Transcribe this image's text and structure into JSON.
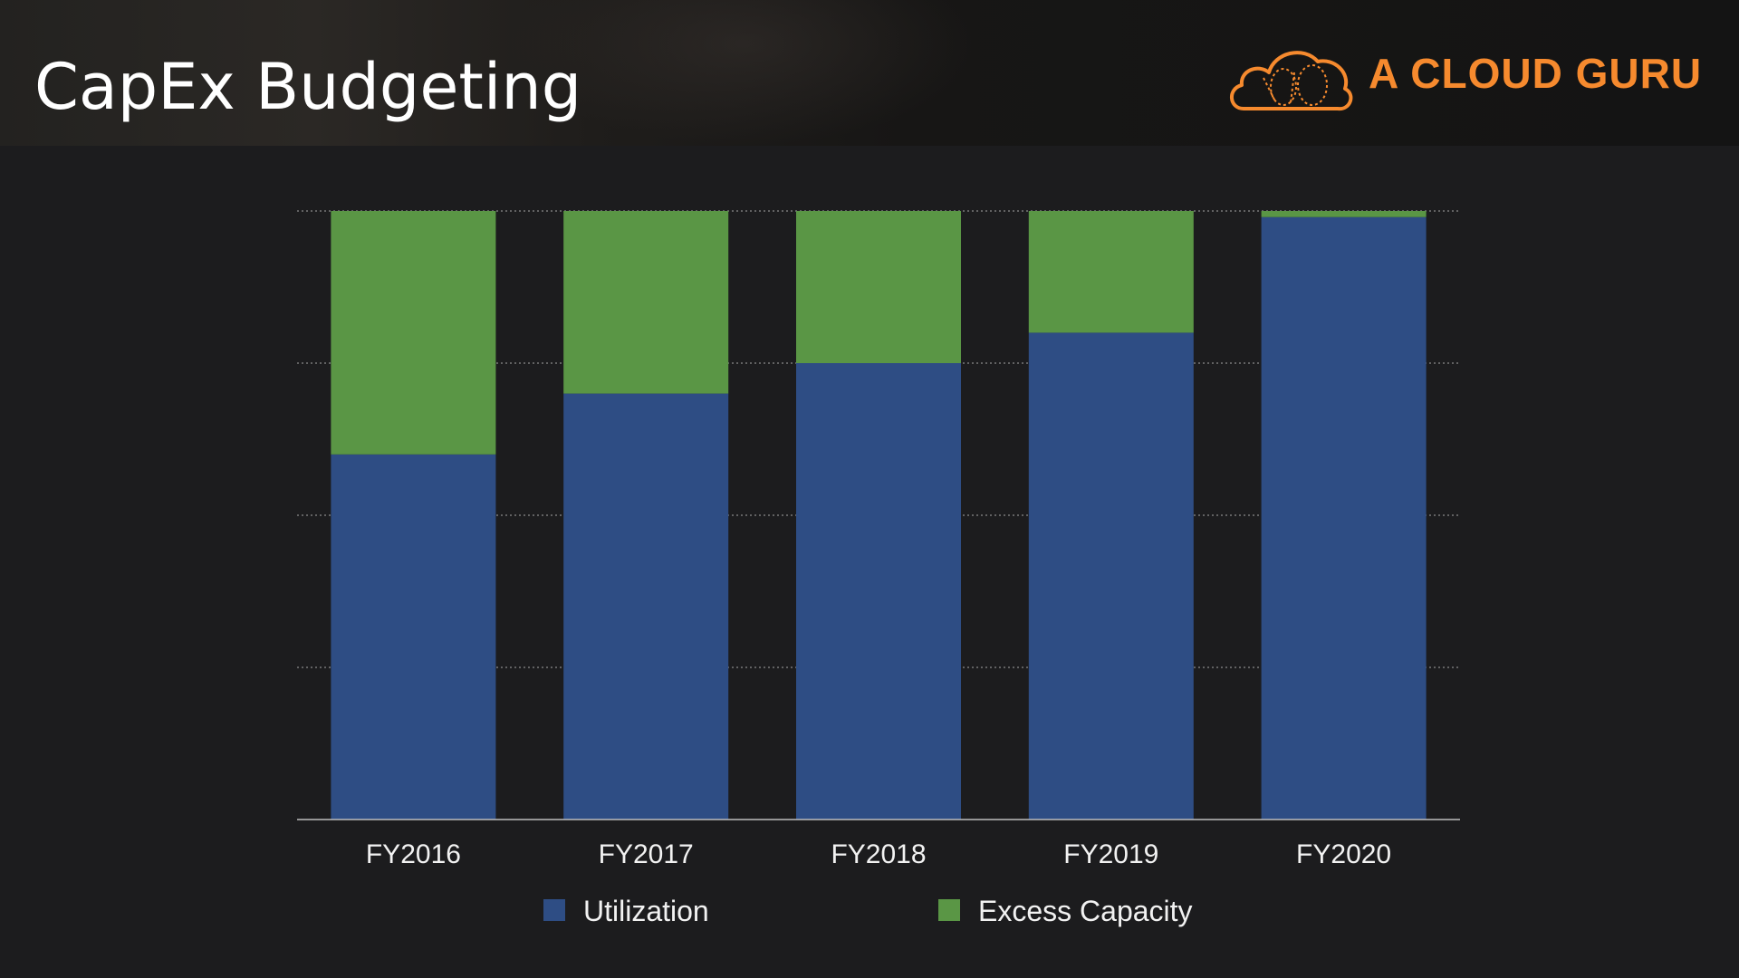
{
  "slide": {
    "title": "CapEx Budgeting"
  },
  "brand": {
    "name": "A CLOUD GURU",
    "icon": "cloud-icon",
    "color": "#f68a2e"
  },
  "chart_data": {
    "type": "bar",
    "stacked": true,
    "categories": [
      "FY2016",
      "FY2017",
      "FY2018",
      "FY2019",
      "FY2020"
    ],
    "series": [
      {
        "name": "Utilization",
        "color": "#2e4d84",
        "values": [
          60,
          70,
          75,
          80,
          99
        ]
      },
      {
        "name": "Excess Capacity",
        "color": "#5a9645",
        "values": [
          40,
          30,
          25,
          20,
          1
        ]
      }
    ],
    "ylim": [
      0,
      100
    ],
    "grid": true,
    "legend": "bottom"
  }
}
